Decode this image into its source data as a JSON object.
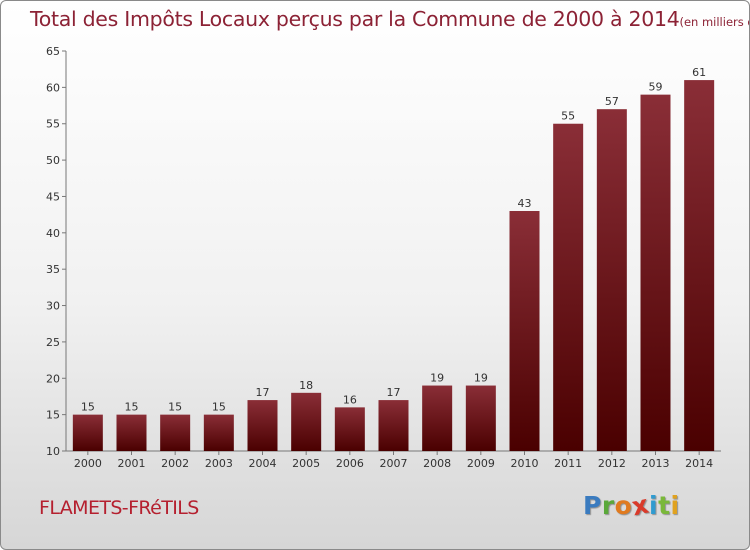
{
  "header": {
    "title": "Total des Impôts Locaux perçus par la Commune de 2000 à 2014",
    "subtitle": "(en milliers d'€)"
  },
  "footer": {
    "commune": "FLAMETS-FRéTILS",
    "logo": [
      "P",
      "r",
      "o",
      "x",
      "i",
      "t",
      "i"
    ],
    "logo_colors": [
      "#3a7bbf",
      "#5aa83a",
      "#e07a1f",
      "#d93a2a",
      "#2f9bd0",
      "#7ab83a",
      "#e0a21f"
    ]
  },
  "chart_data": {
    "type": "bar",
    "title": "Total des Impôts Locaux perçus par la Commune de 2000 à 2014",
    "subtitle": "(en milliers d'€)",
    "xlabel": "",
    "ylabel": "",
    "categories": [
      "2000",
      "2001",
      "2002",
      "2003",
      "2004",
      "2005",
      "2006",
      "2007",
      "2008",
      "2009",
      "2010",
      "2011",
      "2012",
      "2013",
      "2014"
    ],
    "values": [
      15,
      15,
      15,
      15,
      17,
      18,
      16,
      17,
      19,
      19,
      43,
      55,
      57,
      59,
      61
    ],
    "ylim": [
      10,
      65
    ],
    "yticks": [
      10,
      15,
      20,
      25,
      30,
      35,
      40,
      45,
      50,
      55,
      60,
      65
    ],
    "grid": false,
    "bar_color_top": "#8a2e37",
    "bar_color_bottom": "#4a0000"
  }
}
